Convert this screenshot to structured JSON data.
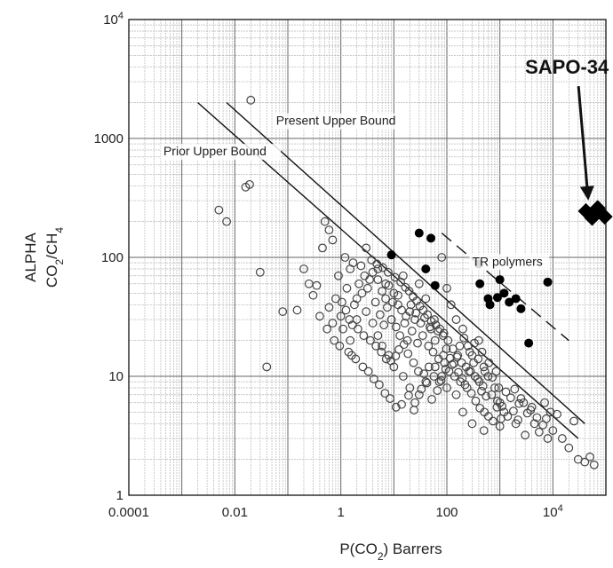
{
  "chart_data": {
    "type": "scatter",
    "x_scale": "log",
    "y_scale": "log",
    "xlim": [
      0.0001,
      100000
    ],
    "ylim": [
      1,
      10000
    ],
    "grid": true,
    "ylabel_line1": "ALPHA",
    "ylabel_line2_main": "CO",
    "ylabel_line2_sub1": "2",
    "ylabel_line2_mid": "/CH",
    "ylabel_line2_sub2": "4",
    "xlabel_main": "P(CO",
    "xlabel_sub": "2",
    "xlabel_tail": ") Barrers",
    "x_ticks": [
      {
        "value": 0.0001,
        "label": "0.0001"
      },
      {
        "value": 0.01,
        "label": "0.01"
      },
      {
        "value": 1,
        "label": "1"
      },
      {
        "value": 100,
        "label": "100"
      },
      {
        "value": 10000,
        "label_base": "10",
        "label_exp": "4"
      }
    ],
    "y_ticks": [
      {
        "value": 1,
        "label": "1"
      },
      {
        "value": 10,
        "label": "10"
      },
      {
        "value": 100,
        "label": "100"
      },
      {
        "value": 1000,
        "label": "1000"
      },
      {
        "value": 10000,
        "label_base": "10",
        "label_exp": "4"
      }
    ],
    "lines": [
      {
        "name": "Prior Upper Bound",
        "style": "solid",
        "x": [
          0.002,
          30000
        ],
        "y": [
          2000,
          3
        ]
      },
      {
        "name": "Present Upper Bound",
        "style": "solid",
        "x": [
          0.007,
          40000
        ],
        "y": [
          2000,
          4
        ]
      },
      {
        "name": "TR polymers",
        "style": "dashed",
        "x": [
          80,
          20000
        ],
        "y": [
          160,
          20
        ]
      }
    ],
    "annotations": [
      {
        "text": "Present Upper Bound",
        "x": 0.06,
        "y": 1300
      },
      {
        "text": "Prior Upper Bound",
        "x": 0.00045,
        "y": 720
      },
      {
        "text": "TR polymers",
        "x": 300,
        "y": 85
      },
      {
        "text": "SAPO-34",
        "x": 3000,
        "y": 3500,
        "style": "bold-callout"
      }
    ],
    "series": [
      {
        "name": "SAPO-34",
        "marker": "diamond",
        "color": "#000000",
        "points": [
          [
            42000,
            245
          ],
          [
            70000,
            260
          ],
          [
            95000,
            220
          ],
          [
            55000,
            215
          ]
        ]
      },
      {
        "name": "TR polymers",
        "marker": "filled-circle",
        "color": "#000000",
        "points": [
          [
            9,
            105
          ],
          [
            30,
            160
          ],
          [
            40,
            80
          ],
          [
            50,
            145
          ],
          [
            60,
            58
          ],
          [
            400,
            88
          ],
          [
            420,
            60
          ],
          [
            600,
            45
          ],
          [
            650,
            40
          ],
          [
            900,
            46
          ],
          [
            1000,
            65
          ],
          [
            1200,
            50
          ],
          [
            1500,
            42
          ],
          [
            2000,
            45
          ],
          [
            2500,
            37
          ],
          [
            3500,
            19
          ],
          [
            8000,
            62
          ]
        ]
      },
      {
        "name": "polymers",
        "marker": "open-circle",
        "color": "#444444",
        "points": [
          [
            0.02,
            2100
          ],
          [
            0.019,
            410
          ],
          [
            0.016,
            390
          ],
          [
            0.005,
            250
          ],
          [
            0.007,
            200
          ],
          [
            0.03,
            75
          ],
          [
            0.04,
            12
          ],
          [
            0.08,
            35
          ],
          [
            0.25,
            60
          ],
          [
            0.45,
            120
          ],
          [
            0.5,
            200
          ],
          [
            0.6,
            170
          ],
          [
            0.7,
            140
          ],
          [
            1.2,
            100
          ],
          [
            1.5,
            80
          ],
          [
            0.9,
            70
          ],
          [
            1.3,
            55
          ],
          [
            0.8,
            45
          ],
          [
            2,
            30
          ],
          [
            1.5,
            20
          ],
          [
            1.6,
            15
          ],
          [
            3,
            120
          ],
          [
            5,
            80
          ],
          [
            7,
            60
          ],
          [
            10,
            50
          ],
          [
            12,
            40
          ],
          [
            15,
            70
          ],
          [
            20,
            35
          ],
          [
            25,
            30
          ],
          [
            30,
            60
          ],
          [
            40,
            45
          ],
          [
            50,
            25
          ],
          [
            60,
            20
          ],
          [
            80,
            100
          ],
          [
            100,
            55
          ],
          [
            120,
            40
          ],
          [
            150,
            30
          ],
          [
            200,
            25
          ],
          [
            250,
            18
          ],
          [
            300,
            15
          ],
          [
            400,
            20
          ],
          [
            500,
            12
          ],
          [
            600,
            10
          ],
          [
            800,
            8
          ],
          [
            1000,
            6
          ],
          [
            1200,
            5
          ],
          [
            2,
            45
          ],
          [
            3,
            35
          ],
          [
            4,
            28
          ],
          [
            5,
            22
          ],
          [
            6,
            18
          ],
          [
            8,
            15
          ],
          [
            10,
            12
          ],
          [
            15,
            10
          ],
          [
            20,
            8
          ],
          [
            25,
            6
          ],
          [
            30,
            7
          ],
          [
            40,
            9
          ],
          [
            60,
            12
          ],
          [
            80,
            10
          ],
          [
            100,
            8
          ],
          [
            150,
            7
          ],
          [
            200,
            5
          ],
          [
            300,
            4
          ],
          [
            500,
            3.5
          ],
          [
            1000,
            3.8
          ],
          [
            2000,
            4
          ],
          [
            3000,
            3.2
          ],
          [
            5000,
            4.5
          ],
          [
            8000,
            3
          ],
          [
            10000,
            3.5
          ],
          [
            15000,
            3
          ],
          [
            20000,
            2.5
          ],
          [
            30000,
            2
          ],
          [
            40000,
            1.9
          ],
          [
            60000,
            1.8
          ],
          [
            50000,
            2.1
          ],
          [
            9000,
            5
          ],
          [
            7000,
            6
          ],
          [
            4000,
            5.5
          ],
          [
            2500,
            6.5
          ],
          [
            12000,
            4.8
          ],
          [
            25000,
            4.2
          ],
          [
            0.6,
            38
          ],
          [
            0.7,
            28
          ],
          [
            1,
            32
          ],
          [
            1.1,
            25
          ],
          [
            1.8,
            40
          ],
          [
            2.5,
            50
          ],
          [
            3.5,
            65
          ],
          [
            4.5,
            42
          ],
          [
            5.5,
            33
          ],
          [
            6.5,
            27
          ],
          [
            7.5,
            38
          ],
          [
            9,
            30
          ],
          [
            11,
            26
          ],
          [
            13,
            22
          ],
          [
            16,
            28
          ],
          [
            18,
            20
          ],
          [
            22,
            24
          ],
          [
            28,
            19
          ],
          [
            35,
            22
          ],
          [
            45,
            18
          ],
          [
            55,
            16
          ],
          [
            70,
            14
          ],
          [
            90,
            13
          ],
          [
            110,
            11
          ],
          [
            140,
            10
          ],
          [
            180,
            9
          ],
          [
            220,
            8.5
          ],
          [
            260,
            11
          ],
          [
            320,
            13
          ],
          [
            380,
            9.5
          ],
          [
            450,
            7.5
          ],
          [
            550,
            6.8
          ],
          [
            700,
            7
          ],
          [
            900,
            6.2
          ],
          [
            1100,
            5.6
          ],
          [
            1400,
            4.6
          ],
          [
            1800,
            5.1
          ],
          [
            2200,
            4.3
          ],
          [
            2.2,
            60
          ],
          [
            2.8,
            70
          ],
          [
            3.2,
            55
          ],
          [
            4,
            75
          ],
          [
            5,
            65
          ],
          [
            6,
            52
          ],
          [
            7,
            45
          ],
          [
            8,
            58
          ],
          [
            9.5,
            42
          ],
          [
            12,
            48
          ],
          [
            14,
            36
          ],
          [
            17,
            32
          ],
          [
            21,
            40
          ],
          [
            26,
            34
          ],
          [
            32,
            28
          ],
          [
            38,
            31
          ],
          [
            48,
            26
          ],
          [
            58,
            30
          ],
          [
            68,
            24
          ],
          [
            85,
            22
          ],
          [
            105,
            20
          ],
          [
            130,
            17
          ],
          [
            160,
            15
          ],
          [
            190,
            13
          ],
          [
            230,
            12
          ],
          [
            280,
            11
          ],
          [
            340,
            10
          ],
          [
            410,
            9
          ],
          [
            480,
            8.3
          ],
          [
            0.35,
            58
          ],
          [
            0.3,
            48
          ],
          [
            0.4,
            32
          ],
          [
            0.55,
            25
          ],
          [
            0.75,
            20
          ],
          [
            0.95,
            18
          ],
          [
            1.4,
            16
          ],
          [
            1.9,
            14
          ],
          [
            2.6,
            12
          ],
          [
            3.3,
            11
          ],
          [
            4.2,
            9.5
          ],
          [
            5.3,
            8.5
          ],
          [
            6.8,
            7.2
          ],
          [
            8.5,
            6.5
          ],
          [
            11,
            5.5
          ],
          [
            14,
            5.8
          ],
          [
            19,
            6.9
          ],
          [
            24,
            5.2
          ],
          [
            33,
            7.8
          ],
          [
            42,
            8.8
          ],
          [
            52,
            6.4
          ],
          [
            66,
            7.6
          ],
          [
            78,
            9.2
          ],
          [
            95,
            11.5
          ],
          [
            125,
            12.5
          ],
          [
            155,
            14.5
          ],
          [
            175,
            18
          ],
          [
            210,
            21
          ],
          [
            270,
            16
          ],
          [
            330,
            19
          ],
          [
            390,
            14
          ],
          [
            460,
            16
          ],
          [
            520,
            11
          ],
          [
            620,
            13
          ],
          [
            720,
            9.8
          ],
          [
            850,
            11
          ],
          [
            950,
            8
          ],
          [
            1300,
            7.4
          ],
          [
            1600,
            6.6
          ],
          [
            1900,
            7.8
          ],
          [
            2300,
            5.9
          ],
          [
            2800,
            6
          ],
          [
            3300,
            4.9
          ],
          [
            3800,
            5.2
          ],
          [
            4500,
            4
          ],
          [
            5500,
            3.4
          ],
          [
            6500,
            3.9
          ],
          [
            7500,
            4.4
          ],
          [
            0.15,
            36
          ],
          [
            0.2,
            80
          ],
          [
            1.7,
            90
          ],
          [
            2.4,
            85
          ],
          [
            3.8,
            95
          ],
          [
            4.8,
            88
          ],
          [
            6.2,
            82
          ],
          [
            7.8,
            75
          ],
          [
            10.5,
            68
          ],
          [
            13.5,
            62
          ],
          [
            16.5,
            56
          ],
          [
            19.5,
            52
          ],
          [
            23,
            47
          ],
          [
            27,
            43
          ],
          [
            31,
            39
          ],
          [
            36,
            36
          ],
          [
            43,
            33
          ],
          [
            51,
            29
          ],
          [
            62,
            27
          ],
          [
            74,
            25
          ],
          [
            88,
            23
          ],
          [
            1.05,
            42
          ],
          [
            1.25,
            36
          ],
          [
            1.45,
            30
          ],
          [
            1.65,
            27
          ],
          [
            2.1,
            25
          ],
          [
            2.7,
            22
          ],
          [
            3.6,
            20
          ],
          [
            4.6,
            18
          ],
          [
            5.8,
            16
          ],
          [
            7.2,
            14
          ],
          [
            8.8,
            13.5
          ],
          [
            10.8,
            14.8
          ],
          [
            12.5,
            16.8
          ],
          [
            15.5,
            18.5
          ],
          [
            18.5,
            15.5
          ],
          [
            23.5,
            13
          ],
          [
            29,
            11
          ],
          [
            37,
            10.5
          ],
          [
            46,
            12
          ],
          [
            57,
            10
          ],
          [
            72,
            9
          ],
          [
            86,
            15
          ],
          [
            98,
            17
          ],
          [
            115,
            14.2
          ],
          [
            135,
            12.8
          ],
          [
            165,
            10.8
          ],
          [
            195,
            9.6
          ],
          [
            240,
            8
          ],
          [
            290,
            7.2
          ],
          [
            350,
            6.2
          ],
          [
            420,
            5.4
          ],
          [
            510,
            5
          ],
          [
            610,
            4.6
          ],
          [
            740,
            4.2
          ],
          [
            880,
            5.5
          ],
          [
            1050,
            4.4
          ]
        ]
      }
    ]
  }
}
